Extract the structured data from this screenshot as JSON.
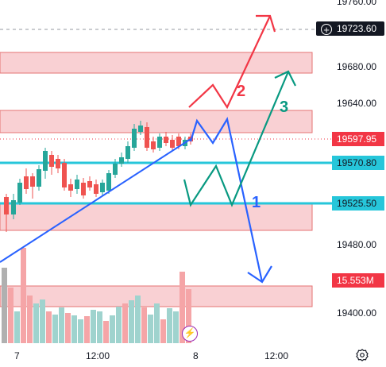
{
  "price_axis": {
    "ticks": [
      "19680.00",
      "19640.00",
      "19480.00",
      "19400.00"
    ],
    "top_partial": "19760.00"
  },
  "time_axis": {
    "ticks": [
      "7",
      "12:00",
      "8",
      "12:00"
    ]
  },
  "price_tags": {
    "crosshair": "19723.60",
    "last_price": "19597.95",
    "level_1": "19570.80",
    "level_2": "19525.50",
    "volume": "15.553M"
  },
  "annotations": {
    "label_1": "1",
    "label_2": "2",
    "label_3": "3"
  },
  "icons": {
    "settings": "gear-icon",
    "alert": "lightning-icon",
    "crosshair": "plus-circle-icon"
  },
  "colors": {
    "up": "#26a69a",
    "down": "#ef5350",
    "zone_fill": "#f9d0d3",
    "zone_border": "#e57373",
    "level_line": "#26c6da",
    "trendline": "#2962ff",
    "path_1": "#2962ff",
    "path_2": "#f23645",
    "path_3": "#089981"
  }
}
